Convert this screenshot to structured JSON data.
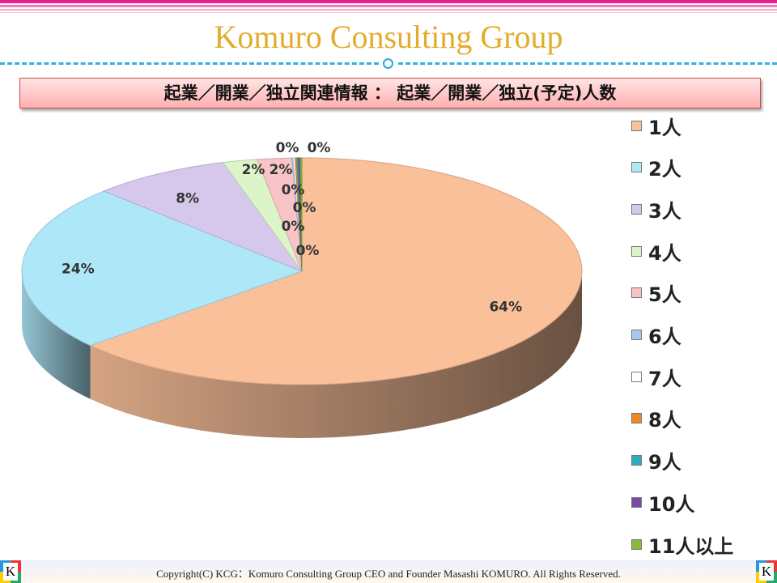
{
  "header": {
    "title": "Komuro Consulting Group",
    "subtitle": "起業／開業／独立関連情報 ： 起業／開業／独立(予定)人数"
  },
  "footer": {
    "copyright": "Copyright(C)  KCG：Komuro Consulting Group   CEO and Founder  Masashi KOMURO. All Rights Reserved.",
    "logo_letter": "K"
  },
  "colors": {
    "title": "#e2ad2c",
    "top_stripe": "#ec1c8c",
    "dash": "#2cb6df"
  },
  "chart_data": {
    "type": "pie",
    "style": "3d",
    "legend": "right",
    "categories": [
      "1人",
      "2人",
      "3人",
      "4人",
      "5人",
      "6人",
      "7人",
      "8人",
      "9人",
      "10人",
      "11人以上"
    ],
    "values": [
      64,
      24,
      8,
      2,
      2,
      0,
      0,
      0,
      0,
      0,
      0
    ],
    "labels": [
      "64%",
      "24%",
      "8%",
      "2%",
      "2%",
      "0%",
      "0%",
      "0%",
      "0%",
      "0%",
      "0%"
    ],
    "colors": [
      "#f9c09a",
      "#aee8f8",
      "#d6c8ec",
      "#dcf5c8",
      "#f9c4c8",
      "#a9c8f0",
      "#ffffff",
      "#f08a20",
      "#30a8c0",
      "#7a4aa8",
      "#8ab83a"
    ]
  }
}
